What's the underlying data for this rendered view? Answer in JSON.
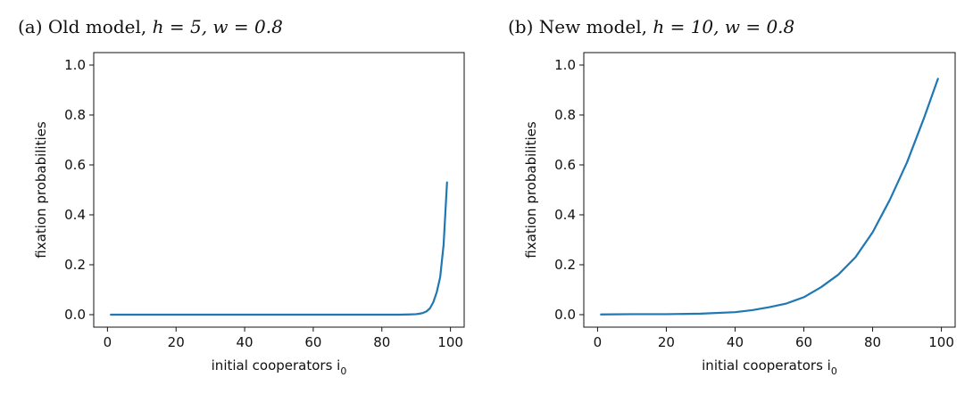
{
  "chart_data": [
    {
      "type": "line",
      "title_prefix": "(a) Old model,",
      "title_math": "h = 5, w = 0.8",
      "xlabel": "initial cooperators i",
      "xlabel_sub": "0",
      "ylabel": "fixation probabilities",
      "xlim": [
        -4,
        104
      ],
      "ylim": [
        -0.05,
        1.05
      ],
      "xticks": [
        0,
        20,
        40,
        60,
        80,
        100
      ],
      "yticks": [
        "0.0",
        "0.2",
        "0.4",
        "0.6",
        "0.8",
        "1.0"
      ],
      "series": [
        {
          "color": "#1f77b4",
          "x": [
            1,
            10,
            20,
            30,
            40,
            50,
            60,
            70,
            80,
            85,
            88,
            90,
            91,
            92,
            93,
            94,
            95,
            96,
            97,
            98,
            99
          ],
          "y": [
            0,
            0,
            0,
            0,
            0,
            0,
            0,
            0,
            0,
            0,
            0.001,
            0.002,
            0.004,
            0.007,
            0.013,
            0.025,
            0.05,
            0.09,
            0.15,
            0.28,
            0.53
          ]
        }
      ]
    },
    {
      "type": "line",
      "title_prefix": "(b) New model,",
      "title_math": "h = 10, w = 0.8",
      "xlabel": "initial cooperators i",
      "xlabel_sub": "0",
      "ylabel": "fixation probabilities",
      "xlim": [
        -4,
        104
      ],
      "ylim": [
        -0.05,
        1.05
      ],
      "xticks": [
        0,
        20,
        40,
        60,
        80,
        100
      ],
      "yticks": [
        "0.0",
        "0.2",
        "0.4",
        "0.6",
        "0.8",
        "1.0"
      ],
      "series": [
        {
          "color": "#1f77b4",
          "x": [
            1,
            10,
            20,
            30,
            40,
            45,
            50,
            55,
            60,
            65,
            70,
            75,
            80,
            85,
            90,
            95,
            99
          ],
          "y": [
            0.001,
            0.002,
            0.002,
            0.004,
            0.01,
            0.018,
            0.03,
            0.045,
            0.07,
            0.11,
            0.16,
            0.23,
            0.33,
            0.46,
            0.61,
            0.79,
            0.945
          ]
        }
      ]
    }
  ]
}
